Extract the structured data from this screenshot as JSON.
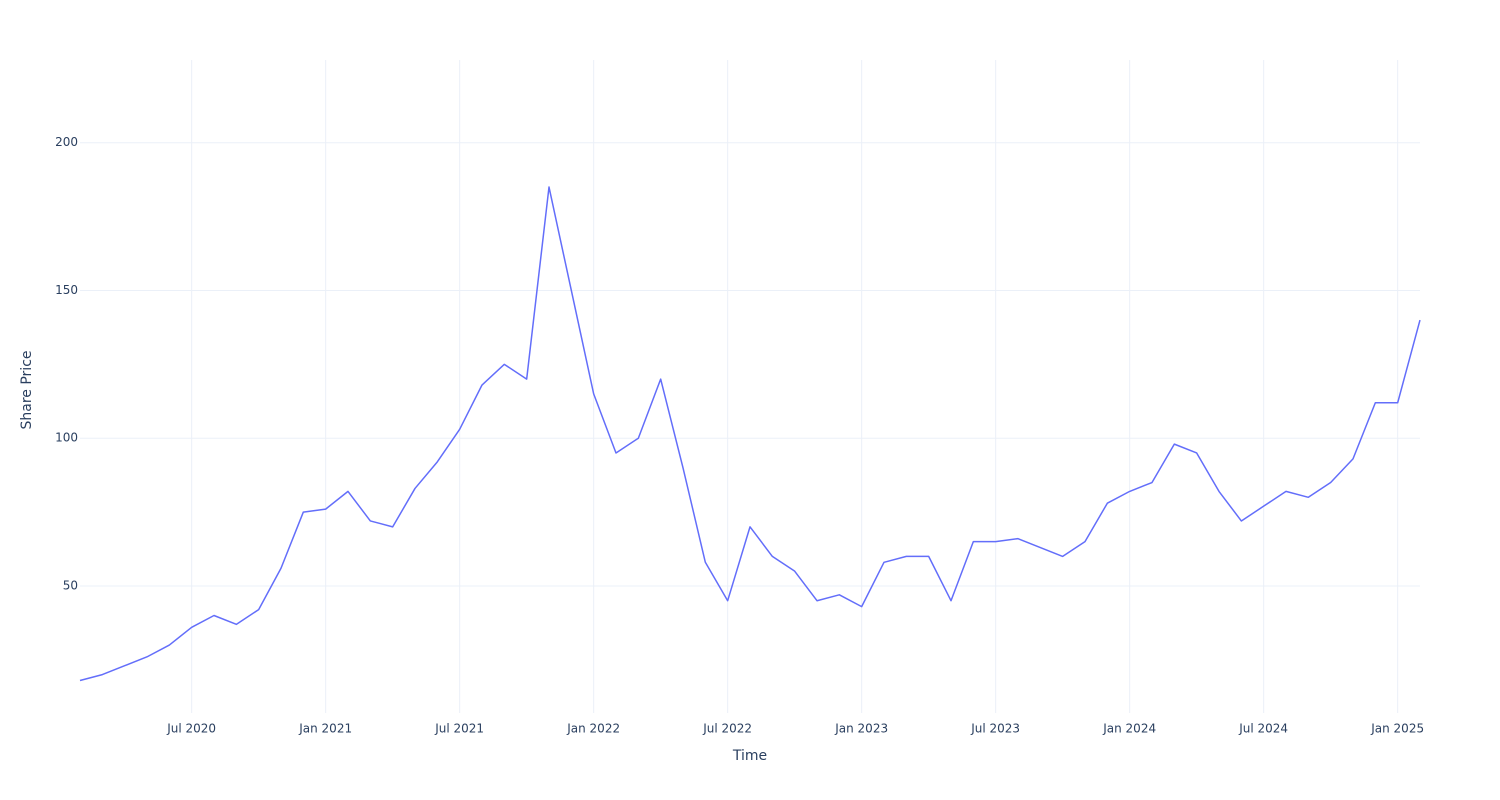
{
  "chart_data": {
    "type": "line",
    "x_label": "Time",
    "y_label": "Share Price",
    "x": [
      "2020-02",
      "2020-03",
      "2020-04",
      "2020-05",
      "2020-06",
      "2020-07",
      "2020-08",
      "2020-09",
      "2020-10",
      "2020-11",
      "2020-12",
      "2021-01",
      "2021-02",
      "2021-03",
      "2021-04",
      "2021-05",
      "2021-06",
      "2021-07",
      "2021-08",
      "2021-09",
      "2021-10",
      "2021-11",
      "2021-12",
      "2022-01",
      "2022-02",
      "2022-03",
      "2022-04",
      "2022-05",
      "2022-06",
      "2022-07",
      "2022-08",
      "2022-09",
      "2022-10",
      "2022-11",
      "2022-12",
      "2023-01",
      "2023-02",
      "2023-03",
      "2023-04",
      "2023-05",
      "2023-06",
      "2023-07",
      "2023-08",
      "2023-09",
      "2023-10",
      "2023-11",
      "2023-12",
      "2024-01",
      "2024-02",
      "2024-03",
      "2024-04",
      "2024-05",
      "2024-06",
      "2024-07",
      "2024-08",
      "2024-09",
      "2024-10",
      "2024-11",
      "2024-12",
      "2025-01",
      "2025-02"
    ],
    "series": [
      {
        "name": "Share Price",
        "color": "#636efa",
        "values": [
          18,
          20,
          23,
          26,
          30,
          36,
          40,
          37,
          42,
          56,
          75,
          76,
          82,
          72,
          70,
          83,
          92,
          103,
          118,
          125,
          120,
          185,
          150,
          115,
          95,
          100,
          120,
          90,
          58,
          45,
          70,
          60,
          55,
          45,
          47,
          43,
          58,
          60,
          60,
          45,
          65,
          65,
          66,
          63,
          60,
          65,
          78,
          82,
          85,
          98,
          95,
          82,
          72,
          77,
          82,
          80,
          85,
          93,
          112,
          112,
          140
        ]
      }
    ],
    "xlim": [
      "2020-02",
      "2025-02"
    ],
    "ylim": [
      7,
      228
    ],
    "xticks": [
      {
        "value": "2020-07",
        "label": "Jul 2020"
      },
      {
        "value": "2021-01",
        "label": "Jan 2021"
      },
      {
        "value": "2021-07",
        "label": "Jul 2021"
      },
      {
        "value": "2022-01",
        "label": "Jan 2022"
      },
      {
        "value": "2022-07",
        "label": "Jul 2022"
      },
      {
        "value": "2023-01",
        "label": "Jan 2023"
      },
      {
        "value": "2023-07",
        "label": "Jul 2023"
      },
      {
        "value": "2024-01",
        "label": "Jan 2024"
      },
      {
        "value": "2024-07",
        "label": "Jul 2024"
      },
      {
        "value": "2025-01",
        "label": "Jan 2025"
      }
    ],
    "yticks": [
      50,
      100,
      150,
      200
    ],
    "grid": true
  }
}
